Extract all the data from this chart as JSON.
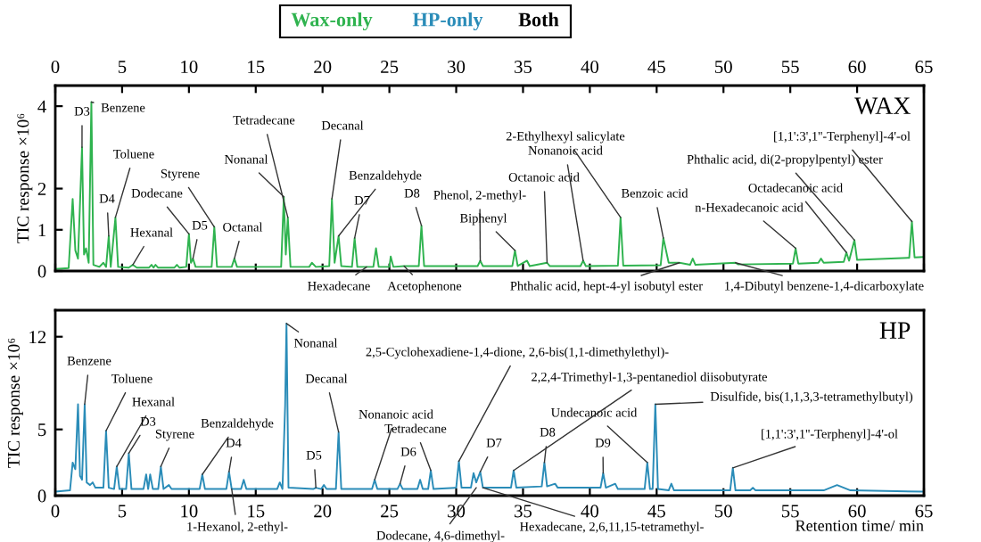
{
  "chart_data": [
    {
      "type": "line",
      "title": "WAX",
      "ylabel": "TIC response ×10⁶",
      "xlim": [
        0,
        65
      ],
      "xticks": [
        0,
        5,
        10,
        15,
        20,
        25,
        30,
        35,
        40,
        45,
        50,
        55,
        60,
        65
      ],
      "ylim": [
        0,
        4.5
      ],
      "yticks": [
        0,
        1,
        2,
        4
      ],
      "grid": false,
      "legend": false,
      "marker": "none",
      "line_style": "solid",
      "annotations": [
        "Wax-only",
        "HP-only",
        "Both",
        {
          "text": "D3",
          "x": 2.0,
          "y": 3.0
        },
        {
          "text": "Benzene",
          "x": 2.7,
          "y": 4.1
        },
        {
          "text": "Toluene",
          "x": 4.5,
          "y": 1.3
        },
        {
          "text": "D4",
          "x": 4.0,
          "y": 0.85
        },
        {
          "text": "Hexanal",
          "x": 5.8,
          "y": 0.15
        },
        {
          "text": "Dodecane",
          "x": 10.0,
          "y": 0.9
        },
        {
          "text": "Styrene",
          "x": 11.9,
          "y": 1.07
        },
        {
          "text": "D5",
          "x": 10.3,
          "y": 0.3
        },
        {
          "text": "Octanal",
          "x": 13.4,
          "y": 0.3
        },
        {
          "text": "Tetradecane",
          "x": 17.4,
          "y": 1.3
        },
        {
          "text": "Nonanal",
          "x": 17.1,
          "y": 1.8
        },
        {
          "text": "Decanal",
          "x": 20.7,
          "y": 1.75
        },
        {
          "text": "Benzaldehyde",
          "x": 21.2,
          "y": 0.85
        },
        {
          "text": "D7",
          "x": 22.4,
          "y": 0.8
        },
        {
          "text": "D8",
          "x": 27.4,
          "y": 1.1
        },
        {
          "text": "Phenol, 2-methyl-",
          "x": 31.8,
          "y": 0.25
        },
        {
          "text": "Biphenyl",
          "x": 34.4,
          "y": 0.5
        },
        {
          "text": "2-Ethylhexyl salicylate",
          "x": 42.3,
          "y": 1.3
        },
        {
          "text": "Nonanoic acid",
          "x": 39.5,
          "y": 0.25
        },
        {
          "text": "Octanoic acid",
          "x": 36.8,
          "y": 0.2
        },
        {
          "text": "Benzoic acid",
          "x": 45.5,
          "y": 0.8
        },
        {
          "text": "n-Hexadecanoic acid",
          "x": 55.4,
          "y": 0.55
        },
        {
          "text": "Octadecanoic acid",
          "x": 59.2,
          "y": 0.45
        },
        {
          "text": "Phthalic acid, di(2-propylpentyl) ester",
          "x": 59.8,
          "y": 0.75
        },
        {
          "text": "[1,1':3',1''-Terphenyl]-4'-ol",
          "x": 64.1,
          "y": 1.2
        },
        {
          "text": "Hexadecane",
          "x": 23.3,
          "y": 0.1
        },
        {
          "text": "Acetophenone",
          "x": 26.1,
          "y": 0.12
        },
        {
          "text": "Phthalic acid, hept-4-yl isobutyl ester",
          "x": 46.7,
          "y": 0.2
        },
        {
          "text": "1,4-Dibutyl benzene-1,4-dicarboxylate",
          "x": 50.9,
          "y": 0.2
        }
      ],
      "series": [
        {
          "color": "#2fb34f",
          "x": [
            0,
            1.0,
            1.3,
            1.5,
            1.7,
            2.0,
            2.15,
            2.3,
            2.5,
            2.7,
            2.85,
            3.3,
            3.6,
            3.8,
            4.0,
            4.15,
            4.5,
            4.7,
            5.5,
            5.8,
            6.1,
            7.0,
            7.2,
            7.35,
            7.5,
            7.7,
            8.9,
            9.1,
            9.3,
            9.8,
            10.0,
            10.15,
            10.3,
            10.5,
            11.7,
            11.9,
            12.1,
            13.2,
            13.4,
            13.6,
            16.9,
            17.1,
            17.25,
            17.4,
            17.6,
            19.0,
            19.2,
            19.5,
            20.5,
            20.7,
            20.9,
            21.2,
            21.4,
            22.2,
            22.4,
            22.6,
            23.3,
            23.8,
            24.0,
            24.2,
            25.0,
            25.1,
            25.3,
            26.1,
            27.2,
            27.4,
            27.6,
            31.6,
            31.8,
            32.0,
            34.2,
            34.4,
            34.6,
            35.3,
            35.5,
            36.8,
            37.0,
            39.3,
            39.5,
            39.7,
            42.1,
            42.3,
            42.5,
            45.3,
            45.5,
            45.9,
            46.7,
            47.5,
            47.7,
            47.9,
            50.9,
            51.1,
            55.2,
            55.4,
            55.6,
            57.1,
            57.3,
            57.5,
            59.0,
            59.2,
            59.4,
            59.8,
            60.0,
            63.9,
            64.1,
            64.3,
            65
          ],
          "values": [
            0.05,
            0.07,
            1.75,
            0.5,
            0.3,
            3.0,
            0.4,
            0.55,
            0.2,
            4.1,
            0.15,
            0.1,
            0.2,
            0.1,
            0.85,
            0.1,
            1.3,
            0.1,
            0.08,
            0.15,
            0.08,
            0.08,
            0.15,
            0.08,
            0.15,
            0.08,
            0.08,
            0.15,
            0.08,
            0.1,
            0.9,
            0.2,
            0.3,
            0.1,
            0.1,
            1.07,
            0.1,
            0.1,
            0.3,
            0.1,
            0.1,
            1.8,
            0.4,
            1.3,
            0.1,
            0.1,
            0.2,
            0.1,
            0.12,
            1.75,
            0.2,
            0.85,
            0.12,
            0.1,
            0.8,
            0.1,
            0.1,
            0.1,
            0.55,
            0.1,
            0.1,
            0.35,
            0.1,
            0.12,
            0.12,
            1.1,
            0.12,
            0.12,
            0.25,
            0.12,
            0.12,
            0.5,
            0.12,
            0.25,
            0.12,
            0.2,
            0.12,
            0.12,
            0.25,
            0.12,
            0.13,
            1.3,
            0.13,
            0.14,
            0.8,
            0.2,
            0.2,
            0.15,
            0.3,
            0.15,
            0.2,
            0.16,
            0.18,
            0.55,
            0.18,
            0.2,
            0.3,
            0.2,
            0.22,
            0.45,
            0.25,
            0.75,
            0.27,
            0.32,
            1.2,
            0.33,
            0.34
          ]
        }
      ]
    },
    {
      "type": "line",
      "title": "HP",
      "ylabel": "TIC response ×10⁶",
      "xlabel": "Retention time/ min",
      "xlim": [
        0,
        65
      ],
      "xticks": [
        0,
        5,
        10,
        15,
        20,
        25,
        30,
        35,
        40,
        45,
        50,
        55,
        60,
        65
      ],
      "ylim": [
        0,
        14
      ],
      "yticks": [
        0,
        5,
        12
      ],
      "grid": false,
      "legend": false,
      "marker": "none",
      "line_style": "solid",
      "annotations": [
        {
          "text": "Benzene",
          "x": 2.2,
          "y": 6.9
        },
        {
          "text": "Toluene",
          "x": 3.8,
          "y": 4.9
        },
        {
          "text": "Hexanal",
          "x": 4.6,
          "y": 2.2
        },
        {
          "text": "D3",
          "x": 5.5,
          "y": 3.2
        },
        {
          "text": "Styrene",
          "x": 7.9,
          "y": 2.2
        },
        {
          "text": "Benzaldehyde",
          "x": 11.0,
          "y": 1.6
        },
        {
          "text": "D4",
          "x": 13.0,
          "y": 1.8
        },
        {
          "text": "Nonanal",
          "x": 17.3,
          "y": 13.0
        },
        {
          "text": "Decanal",
          "x": 21.2,
          "y": 4.8
        },
        {
          "text": "D5",
          "x": 19.5,
          "y": 0.6
        },
        {
          "text": "Nonanoic acid",
          "x": 23.9,
          "y": 1.2
        },
        {
          "text": "Tetradecane",
          "x": 28.1,
          "y": 1.9
        },
        {
          "text": "D6",
          "x": 25.8,
          "y": 0.9
        },
        {
          "text": "D7",
          "x": 31.8,
          "y": 1.8
        },
        {
          "text": "D8",
          "x": 36.6,
          "y": 2.5
        },
        {
          "text": "D9",
          "x": 41.0,
          "y": 1.7
        },
        {
          "text": "Undecanoic acid",
          "x": 44.3,
          "y": 2.5
        },
        {
          "text": "Disulfide, bis(1,1,3,3-tetramethylbutyl)",
          "x": 44.9,
          "y": 6.9
        },
        {
          "text": "2,5-Cyclohexadiene-1,4-dione, 2,6-bis(1,1-dimethylethyl)-",
          "x": 30.2,
          "y": 2.6
        },
        {
          "text": "2,2,4-Trimethyl-1,3-pentanediol diisobutyrate",
          "x": 34.3,
          "y": 1.9
        },
        {
          "text": "[1,1':3',1''-Terphenyl]-4'-ol",
          "x": 50.7,
          "y": 2.1
        },
        {
          "text": "1-Hexanol, 2-ethyl-",
          "x": 13.2,
          "y": 0.5
        },
        {
          "text": "Dodecane, 4,6-dimethyl-",
          "x": 31.5,
          "y": 0.6
        },
        {
          "text": "Hexadecane, 2,6,11,15-tetramethyl-",
          "x": 32.0,
          "y": 0.6
        }
      ],
      "series": [
        {
          "color": "#2a8cb8",
          "x": [
            0,
            1.1,
            1.3,
            1.5,
            1.7,
            1.85,
            2.0,
            2.2,
            2.35,
            2.6,
            2.8,
            3.0,
            3.6,
            3.8,
            4.0,
            4.4,
            4.6,
            4.8,
            5.3,
            5.5,
            5.7,
            6.6,
            6.8,
            6.95,
            7.1,
            7.3,
            7.7,
            7.9,
            8.1,
            8.5,
            8.7,
            10.8,
            11.0,
            11.2,
            12.8,
            13.0,
            13.2,
            13.9,
            14.1,
            14.3,
            16.6,
            16.8,
            17.0,
            17.2,
            17.3,
            17.45,
            19.3,
            19.5,
            19.9,
            20.1,
            20.3,
            21.0,
            21.2,
            21.4,
            23.7,
            23.9,
            24.1,
            25.6,
            25.8,
            26.0,
            27.1,
            27.3,
            27.5,
            27.9,
            28.1,
            28.3,
            30.0,
            30.2,
            30.4,
            31.1,
            31.3,
            31.5,
            31.8,
            32.0,
            34.1,
            34.3,
            34.5,
            36.4,
            36.6,
            36.8,
            37.4,
            37.6,
            40.8,
            41.0,
            41.2,
            41.9,
            42.1,
            44.1,
            44.3,
            44.5,
            44.7,
            44.9,
            45.1,
            45.9,
            46.1,
            46.3,
            50.5,
            50.7,
            50.9,
            52.0,
            52.2,
            52.4,
            57.5,
            58.5,
            59.5,
            65
          ],
          "values": [
            0.3,
            0.4,
            2.5,
            2.0,
            6.9,
            1.5,
            1.2,
            6.9,
            1.0,
            0.8,
            1.0,
            0.6,
            0.6,
            4.9,
            0.6,
            0.5,
            2.2,
            0.5,
            0.5,
            3.2,
            0.5,
            0.5,
            1.6,
            0.5,
            1.6,
            0.5,
            0.5,
            2.2,
            0.5,
            0.8,
            0.5,
            0.5,
            1.6,
            0.5,
            0.5,
            1.8,
            0.5,
            0.5,
            1.2,
            0.5,
            0.5,
            1.0,
            0.5,
            6.8,
            13.0,
            0.6,
            0.5,
            0.6,
            0.5,
            0.8,
            0.5,
            0.5,
            4.8,
            0.5,
            0.5,
            1.2,
            0.5,
            0.5,
            0.9,
            0.5,
            0.5,
            1.2,
            0.5,
            0.5,
            1.9,
            0.5,
            0.6,
            2.6,
            0.6,
            0.6,
            1.7,
            1.0,
            1.8,
            0.6,
            0.6,
            1.9,
            0.6,
            0.7,
            2.5,
            0.7,
            0.9,
            0.6,
            0.6,
            1.7,
            0.6,
            0.9,
            0.5,
            0.5,
            2.5,
            0.5,
            0.5,
            6.9,
            0.5,
            0.4,
            0.9,
            0.4,
            0.4,
            2.1,
            0.4,
            0.4,
            0.6,
            0.4,
            0.4,
            0.8,
            0.4,
            0.3
          ]
        }
      ]
    }
  ]
}
